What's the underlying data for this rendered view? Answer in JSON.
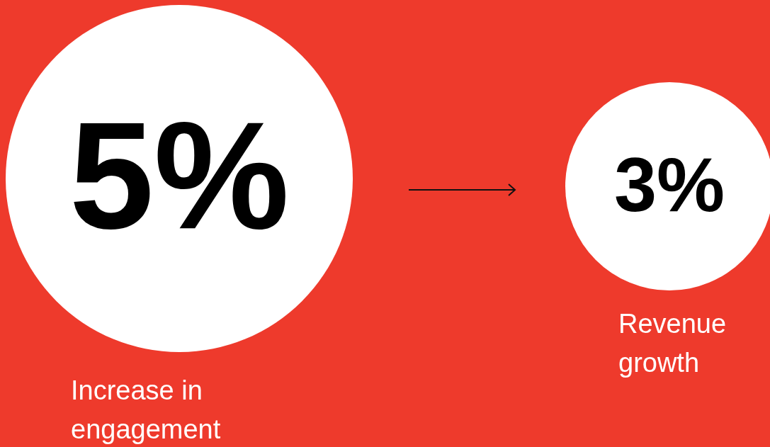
{
  "chart_data": {
    "type": "other",
    "categories": [
      "Increase in engagement",
      "Revenue growth"
    ],
    "values": [
      5,
      3
    ],
    "value_labels": [
      "5%",
      "3%"
    ],
    "colors": [
      "#ffffff",
      "#ffffff"
    ]
  }
}
